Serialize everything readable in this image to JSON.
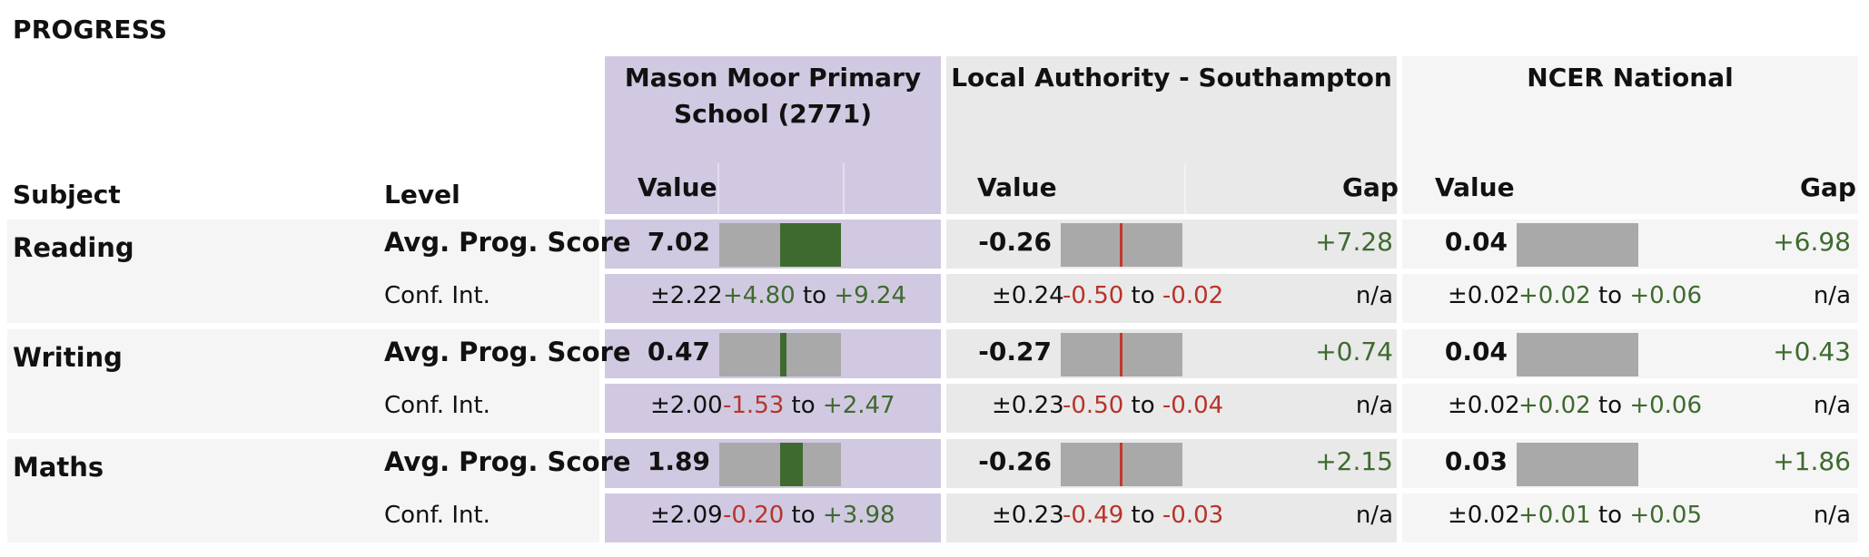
{
  "title": "PROGRESS",
  "headers": {
    "subject": "Subject",
    "level": "Level",
    "school": "Mason Moor Primary School (2771)",
    "la": "Local Authority - Southampton",
    "national": "NCER National",
    "value": "Value",
    "gap": "Gap"
  },
  "rows": [
    {
      "subject": "Reading",
      "level_main": "Avg. Prog. Score",
      "level_ci": "Conf. Int.",
      "school": {
        "value": "7.02",
        "pm": "±2.22",
        "lo": "+4.80",
        "hi": "+9.24",
        "to": "to"
      },
      "la": {
        "value": "-0.26",
        "gap": "+7.28",
        "pm": "±0.24",
        "lo": "-0.50",
        "hi": "-0.02",
        "to": "to",
        "gap_ci": "n/a"
      },
      "national": {
        "value": "0.04",
        "gap": "+6.98",
        "pm": "±0.02",
        "lo": "+0.02",
        "hi": "+0.06",
        "to": "to",
        "gap_ci": "n/a"
      }
    },
    {
      "subject": "Writing",
      "level_main": "Avg. Prog. Score",
      "level_ci": "Conf. Int.",
      "school": {
        "value": "0.47",
        "pm": "±2.00",
        "lo": "-1.53",
        "hi": "+2.47",
        "to": "to"
      },
      "la": {
        "value": "-0.27",
        "gap": "+0.74",
        "pm": "±0.23",
        "lo": "-0.50",
        "hi": "-0.04",
        "to": "to",
        "gap_ci": "n/a"
      },
      "national": {
        "value": "0.04",
        "gap": "+0.43",
        "pm": "±0.02",
        "lo": "+0.02",
        "hi": "+0.06",
        "to": "to",
        "gap_ci": "n/a"
      }
    },
    {
      "subject": "Maths",
      "level_main": "Avg. Prog. Score",
      "level_ci": "Conf. Int.",
      "school": {
        "value": "1.89",
        "pm": "±2.09",
        "lo": "-0.20",
        "hi": "+3.98",
        "to": "to"
      },
      "la": {
        "value": "-0.26",
        "gap": "+2.15",
        "pm": "±0.23",
        "lo": "-0.49",
        "hi": "-0.03",
        "to": "to",
        "gap_ci": "n/a"
      },
      "national": {
        "value": "0.03",
        "gap": "+1.86",
        "pm": "±0.02",
        "lo": "+0.01",
        "hi": "+0.05",
        "to": "to",
        "gap_ci": "n/a"
      }
    }
  ],
  "colors": {
    "school_bg": "#d1c9e1",
    "la_bg": "#e9e9e9",
    "positive": "#3f6a2f",
    "negative": "#b8332a",
    "bar": "#a9a9a9"
  }
}
